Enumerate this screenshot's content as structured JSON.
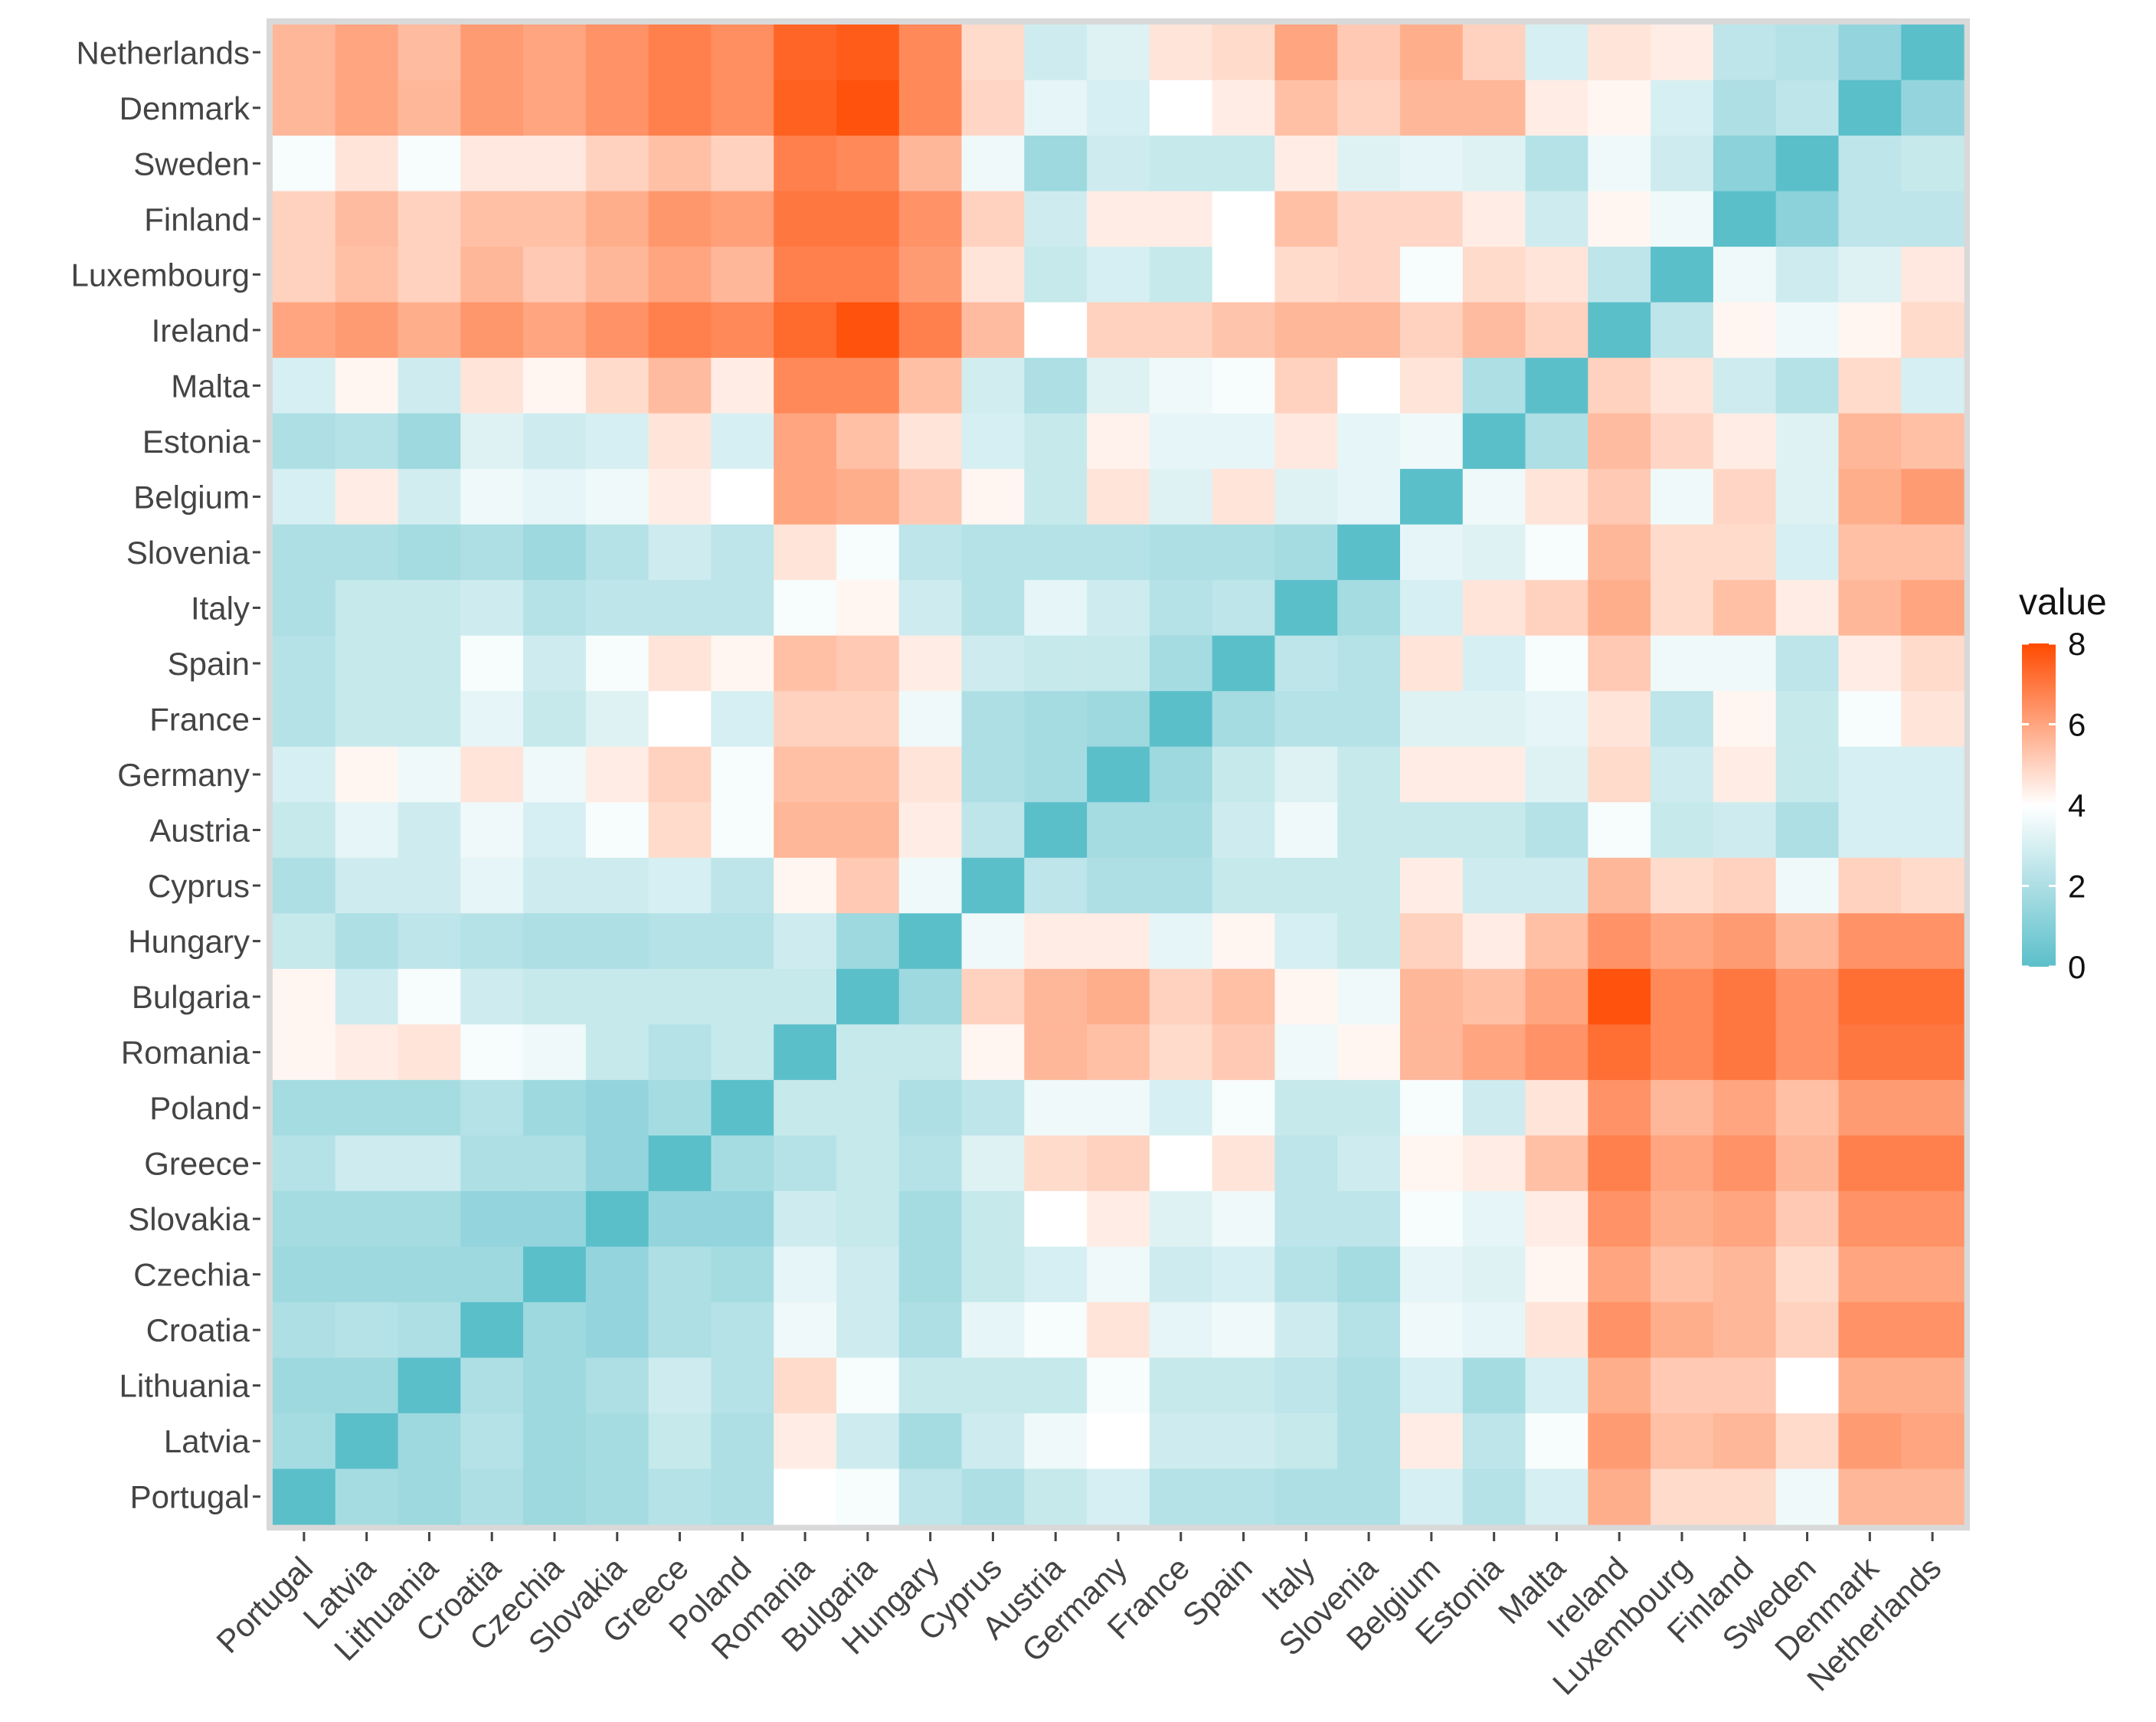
{
  "chart_data": {
    "type": "heatmap",
    "title": "",
    "xlabel": "",
    "ylabel": "",
    "x_categories": [
      "Portugal",
      "Latvia",
      "Lithuania",
      "Croatia",
      "Czechia",
      "Slovakia",
      "Greece",
      "Poland",
      "Romania",
      "Bulgaria",
      "Hungary",
      "Cyprus",
      "Austria",
      "Germany",
      "France",
      "Spain",
      "Italy",
      "Slovenia",
      "Belgium",
      "Estonia",
      "Malta",
      "Ireland",
      "Luxembourg",
      "Finland",
      "Sweden",
      "Denmark",
      "Netherlands"
    ],
    "y_categories_top_to_bottom": [
      "Netherlands",
      "Denmark",
      "Sweden",
      "Finland",
      "Luxembourg",
      "Ireland",
      "Malta",
      "Estonia",
      "Belgium",
      "Slovenia",
      "Italy",
      "Spain",
      "France",
      "Germany",
      "Austria",
      "Cyprus",
      "Hungary",
      "Bulgaria",
      "Romania",
      "Poland",
      "Greece",
      "Slovakia",
      "Czechia",
      "Croatia",
      "Lithuania",
      "Latvia",
      "Portugal"
    ],
    "values": [
      [
        5.6,
        6.0,
        5.5,
        6.2,
        6.0,
        6.4,
        6.8,
        6.5,
        7.4,
        7.6,
        6.6,
        4.8,
        2.8,
        3.2,
        4.6,
        4.8,
        6.0,
        5.2,
        5.8,
        5.0,
        3.0,
        4.6,
        4.4,
        2.4,
        2.2,
        1.4,
        0.0
      ],
      [
        5.6,
        6.0,
        5.6,
        6.2,
        6.0,
        6.4,
        6.8,
        6.5,
        7.5,
        7.8,
        6.6,
        4.9,
        3.4,
        3.0,
        4.0,
        4.4,
        5.4,
        5.0,
        5.6,
        5.6,
        4.4,
        4.2,
        3.0,
        2.0,
        2.4,
        0.0,
        1.4
      ],
      [
        3.8,
        4.6,
        3.8,
        4.5,
        4.5,
        5.0,
        5.4,
        5.0,
        6.8,
        6.6,
        5.6,
        3.6,
        1.6,
        2.8,
        2.6,
        2.6,
        4.4,
        3.2,
        3.4,
        3.2,
        2.2,
        3.6,
        2.8,
        1.2,
        0.0,
        2.4,
        2.6
      ],
      [
        5.0,
        5.5,
        5.0,
        5.4,
        5.4,
        5.8,
        6.3,
        6.1,
        7.0,
        7.0,
        6.4,
        5.0,
        2.8,
        4.4,
        4.4,
        4.0,
        5.4,
        4.9,
        4.9,
        4.4,
        2.8,
        4.2,
        3.6,
        0.0,
        1.2,
        2.4,
        2.4
      ],
      [
        5.0,
        5.4,
        5.0,
        5.6,
        5.2,
        5.6,
        6.0,
        5.6,
        6.8,
        6.8,
        6.2,
        4.6,
        2.6,
        3.0,
        2.6,
        4.0,
        4.8,
        4.9,
        3.8,
        4.8,
        4.6,
        2.4,
        0.0,
        3.6,
        2.8,
        3.2,
        4.5
      ],
      [
        6.0,
        6.2,
        5.8,
        6.3,
        6.0,
        6.4,
        6.8,
        6.6,
        7.3,
        7.8,
        6.8,
        5.5,
        4.0,
        5.0,
        5.0,
        5.3,
        5.6,
        5.6,
        5.0,
        5.5,
        5.0,
        0.0,
        2.4,
        4.2,
        3.6,
        4.2,
        4.8
      ],
      [
        3.0,
        4.2,
        2.8,
        4.6,
        4.2,
        4.8,
        5.5,
        4.4,
        6.6,
        6.6,
        5.4,
        2.9,
        2.0,
        3.2,
        3.6,
        3.8,
        5.0,
        4.0,
        4.6,
        2.0,
        0.0,
        5.0,
        4.6,
        2.8,
        2.2,
        4.8,
        3.0
      ],
      [
        2.0,
        2.2,
        1.6,
        3.2,
        2.8,
        3.0,
        4.6,
        3.0,
        6.0,
        5.4,
        4.6,
        3.0,
        2.6,
        4.3,
        3.4,
        3.4,
        4.5,
        3.4,
        3.6,
        0.0,
        2.0,
        5.5,
        4.9,
        4.4,
        3.2,
        5.6,
        5.4
      ],
      [
        3.0,
        4.4,
        2.9,
        3.6,
        3.4,
        3.6,
        4.4,
        4.0,
        6.0,
        5.8,
        5.2,
        4.2,
        2.6,
        4.6,
        3.2,
        4.6,
        3.2,
        3.4,
        0.0,
        3.6,
        4.6,
        5.2,
        3.6,
        4.9,
        3.2,
        5.8,
        6.2
      ],
      [
        2.0,
        2.0,
        1.8,
        2.0,
        1.6,
        2.2,
        2.8,
        2.4,
        4.6,
        3.8,
        2.4,
        2.2,
        2.2,
        2.2,
        2.0,
        2.0,
        1.8,
        0.0,
        3.4,
        3.2,
        3.8,
        5.6,
        4.8,
        4.8,
        3.0,
        5.4,
        5.4
      ],
      [
        2.0,
        2.6,
        2.6,
        2.8,
        2.2,
        2.4,
        2.4,
        2.4,
        3.8,
        4.2,
        2.8,
        2.2,
        3.4,
        2.8,
        2.2,
        2.4,
        0.0,
        1.8,
        3.0,
        4.6,
        5.0,
        5.8,
        4.8,
        5.4,
        4.4,
        5.6,
        6.0
      ],
      [
        2.2,
        2.6,
        2.6,
        3.8,
        2.8,
        3.8,
        4.6,
        4.2,
        5.4,
        5.2,
        4.4,
        2.8,
        2.6,
        2.6,
        1.8,
        0.0,
        2.4,
        2.2,
        4.6,
        3.0,
        3.8,
        5.2,
        3.6,
        3.6,
        2.4,
        4.4,
        4.8
      ],
      [
        2.2,
        2.6,
        2.6,
        3.4,
        2.6,
        3.2,
        4.0,
        3.0,
        5.0,
        5.0,
        3.6,
        2.0,
        1.8,
        1.6,
        0.0,
        1.8,
        2.2,
        2.2,
        3.2,
        3.2,
        3.4,
        4.6,
        2.4,
        4.2,
        2.6,
        3.8,
        4.6
      ],
      [
        3.0,
        4.2,
        3.6,
        4.6,
        3.6,
        4.4,
        5.0,
        3.8,
        5.4,
        5.4,
        4.6,
        2.0,
        1.8,
        0.0,
        1.6,
        2.6,
        3.2,
        2.6,
        4.4,
        4.4,
        3.2,
        4.8,
        2.8,
        4.4,
        2.6,
        3.0,
        3.0
      ],
      [
        2.6,
        3.4,
        2.8,
        3.6,
        3.0,
        3.8,
        4.8,
        3.8,
        5.6,
        5.6,
        4.4,
        2.4,
        0.0,
        1.8,
        1.8,
        2.8,
        3.6,
        2.6,
        2.6,
        2.6,
        2.2,
        3.8,
        2.6,
        2.8,
        2.0,
        3.0,
        3.0
      ],
      [
        2.0,
        2.8,
        2.8,
        3.4,
        2.8,
        2.8,
        3.0,
        2.4,
        4.2,
        5.2,
        3.6,
        0.0,
        2.4,
        2.0,
        2.0,
        2.6,
        2.6,
        2.6,
        4.4,
        2.8,
        2.8,
        5.6,
        4.8,
        5.0,
        3.6,
        5.0,
        4.8
      ],
      [
        2.6,
        2.0,
        2.4,
        2.2,
        2.0,
        2.0,
        2.2,
        2.2,
        2.8,
        1.6,
        0.0,
        3.6,
        4.4,
        4.4,
        3.4,
        4.2,
        3.0,
        2.6,
        5.0,
        4.4,
        5.4,
        6.4,
        6.0,
        6.2,
        5.6,
        6.4,
        6.4
      ],
      [
        4.2,
        2.8,
        3.8,
        2.8,
        2.6,
        2.6,
        2.6,
        2.6,
        2.6,
        0.0,
        1.6,
        5.0,
        5.6,
        5.8,
        5.0,
        5.4,
        4.2,
        3.6,
        5.6,
        5.4,
        6.0,
        7.8,
        6.6,
        7.0,
        6.4,
        7.2,
        7.2
      ],
      [
        4.2,
        4.4,
        4.6,
        3.8,
        3.6,
        2.6,
        2.2,
        2.6,
        0.0,
        2.6,
        2.6,
        4.2,
        5.6,
        5.4,
        4.8,
        5.2,
        3.6,
        4.2,
        5.6,
        6.0,
        6.4,
        7.2,
        6.6,
        7.0,
        6.4,
        7.0,
        7.0
      ],
      [
        1.8,
        1.8,
        1.8,
        2.2,
        1.6,
        1.4,
        1.8,
        0.0,
        2.6,
        2.6,
        2.0,
        2.4,
        3.6,
        3.6,
        3.0,
        3.8,
        2.6,
        2.6,
        3.8,
        2.8,
        4.6,
        6.4,
        5.6,
        6.0,
        5.4,
        6.2,
        6.2
      ],
      [
        2.2,
        2.8,
        2.8,
        2.0,
        2.0,
        1.4,
        0.0,
        1.8,
        2.2,
        2.6,
        2.2,
        3.2,
        4.8,
        5.0,
        4.0,
        4.6,
        2.4,
        2.8,
        4.2,
        4.4,
        5.4,
        6.8,
        6.0,
        6.4,
        5.6,
        6.8,
        6.8
      ],
      [
        1.8,
        1.8,
        1.8,
        1.4,
        1.4,
        0.0,
        1.4,
        1.4,
        2.8,
        2.6,
        1.8,
        2.6,
        4.0,
        4.4,
        3.2,
        3.6,
        2.4,
        2.4,
        3.8,
        3.4,
        4.4,
        6.4,
        5.8,
        6.0,
        5.2,
        6.4,
        6.4
      ],
      [
        1.6,
        1.6,
        1.6,
        1.6,
        0.0,
        1.4,
        2.0,
        1.8,
        3.4,
        2.8,
        1.8,
        2.6,
        3.0,
        3.6,
        2.8,
        3.0,
        2.2,
        1.8,
        3.4,
        3.2,
        4.2,
        6.0,
        5.4,
        5.6,
        4.8,
        6.0,
        6.0
      ],
      [
        2.0,
        2.2,
        2.0,
        0.0,
        1.6,
        1.4,
        2.0,
        2.2,
        3.6,
        2.8,
        2.0,
        3.4,
        3.8,
        4.6,
        3.4,
        3.6,
        2.8,
        2.2,
        3.6,
        3.4,
        4.6,
        6.4,
        5.8,
        5.6,
        5.0,
        6.4,
        6.4
      ],
      [
        1.6,
        1.6,
        0.0,
        2.0,
        1.6,
        2.0,
        2.8,
        2.2,
        4.8,
        3.8,
        2.6,
        2.6,
        2.6,
        3.8,
        2.6,
        2.6,
        2.4,
        2.0,
        3.0,
        1.8,
        3.0,
        5.8,
        5.2,
        5.2,
        4.0,
        5.8,
        5.8
      ],
      [
        1.8,
        0.0,
        1.6,
        2.2,
        1.6,
        1.8,
        2.6,
        2.0,
        4.4,
        2.8,
        1.8,
        2.8,
        3.6,
        4.0,
        2.8,
        2.8,
        2.6,
        2.0,
        4.4,
        2.4,
        3.8,
        6.2,
        5.4,
        5.6,
        4.8,
        6.2,
        6.0
      ],
      [
        0.0,
        1.8,
        1.6,
        2.0,
        1.6,
        1.8,
        2.2,
        2.0,
        4.0,
        3.8,
        2.4,
        2.0,
        2.6,
        3.0,
        2.2,
        2.2,
        2.0,
        2.0,
        3.0,
        2.2,
        3.0,
        5.8,
        4.8,
        4.8,
        3.6,
        5.6,
        5.6
      ]
    ],
    "color_scale": {
      "min": 0,
      "mid": 4,
      "max": 8,
      "low_color": "#5bbfca",
      "mid_color": "#ffffff",
      "high_color": "#ff4a00"
    },
    "legend": {
      "title": "value",
      "ticks": [
        8,
        6,
        4,
        2,
        0
      ],
      "position": "right"
    }
  }
}
